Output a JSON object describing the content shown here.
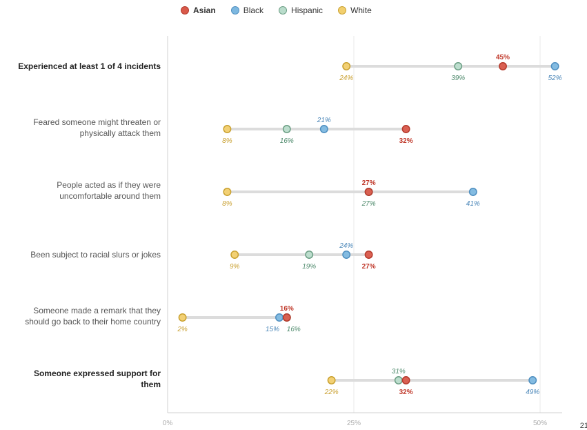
{
  "legend": [
    {
      "name": "Asian",
      "color": "#d9594a",
      "stroke": "#b43a2c",
      "bold": true
    },
    {
      "name": "Black",
      "color": "#7db8e0",
      "stroke": "#4f8fc0",
      "bold": false
    },
    {
      "name": "Hispanic",
      "color": "#b9dccb",
      "stroke": "#6b9e84",
      "bold": false
    },
    {
      "name": "White",
      "color": "#f2cf6e",
      "stroke": "#c9a130",
      "bold": false
    }
  ],
  "label_colors": {
    "Asian": "#c0392b",
    "Black": "#4a86b8",
    "Hispanic": "#4e8a6c",
    "White": "#c9a030"
  },
  "chart_data": {
    "type": "dot-range",
    "x_ticks": [
      {
        "value": 0,
        "label": "0%"
      },
      {
        "value": 25,
        "label": "25%"
      },
      {
        "value": 50,
        "label": "50%"
      }
    ],
    "x_range": [
      0,
      53
    ],
    "rows": [
      {
        "label_lines": [
          "Experienced at least 1 of 4 incidents"
        ],
        "bold": true,
        "values": {
          "Asian": 45,
          "Black": 52,
          "Hispanic": 39,
          "White": 24
        },
        "labels": [
          {
            "series": "Asian",
            "text": "45%",
            "pos": "above"
          },
          {
            "series": "White",
            "text": "24%",
            "pos": "below"
          },
          {
            "series": "Hispanic",
            "text": "39%",
            "pos": "below"
          },
          {
            "series": "Black",
            "text": "52%",
            "pos": "below"
          }
        ]
      },
      {
        "label_lines": [
          "Feared someone might threaten or",
          "physically attack them"
        ],
        "bold": false,
        "values": {
          "Asian": 32,
          "Black": 21,
          "Hispanic": 16,
          "White": 8
        },
        "labels": [
          {
            "series": "Black",
            "text": "21%",
            "pos": "above"
          },
          {
            "series": "White",
            "text": "8%",
            "pos": "below"
          },
          {
            "series": "Hispanic",
            "text": "16%",
            "pos": "below"
          },
          {
            "series": "Asian",
            "text": "32%",
            "pos": "below"
          }
        ]
      },
      {
        "label_lines": [
          "People acted as if they were",
          "uncomfortable around them"
        ],
        "bold": false,
        "values": {
          "Asian": 27,
          "Black": 41,
          "Hispanic": 27,
          "White": 8
        },
        "labels": [
          {
            "series": "Asian",
            "text": "27%",
            "pos": "above"
          },
          {
            "series": "White",
            "text": "8%",
            "pos": "below"
          },
          {
            "series": "Hispanic",
            "text": "27%",
            "pos": "below"
          },
          {
            "series": "Black",
            "text": "41%",
            "pos": "below"
          }
        ]
      },
      {
        "label_lines": [
          "Been subject to racial slurs or jokes"
        ],
        "bold": false,
        "values": {
          "Asian": 27,
          "Black": 24,
          "Hispanic": 19,
          "White": 9
        },
        "labels": [
          {
            "series": "Black",
            "text": "24%",
            "pos": "above"
          },
          {
            "series": "White",
            "text": "9%",
            "pos": "below"
          },
          {
            "series": "Hispanic",
            "text": "19%",
            "pos": "below"
          },
          {
            "series": "Asian",
            "text": "27%",
            "pos": "below"
          }
        ]
      },
      {
        "label_lines": [
          "Someone made a remark that they",
          "should go back to their home country"
        ],
        "bold": false,
        "values": {
          "Asian": 16,
          "Black": 15,
          "Hispanic": 16,
          "White": 2
        },
        "labels": [
          {
            "series": "Asian",
            "text": "16%",
            "pos": "above"
          },
          {
            "series": "White",
            "text": "2%",
            "pos": "below"
          },
          {
            "series": "Black",
            "text": "15%",
            "pos": "below-left"
          },
          {
            "series": "Hispanic",
            "text": "16%",
            "pos": "below-right"
          }
        ]
      },
      {
        "label_lines": [
          "Someone expressed support for",
          "them"
        ],
        "bold": true,
        "values": {
          "Asian": 32,
          "Black": 49,
          "Hispanic": 31,
          "White": 22
        },
        "labels": [
          {
            "series": "Hispanic",
            "text": "31%",
            "pos": "above"
          },
          {
            "series": "White",
            "text": "22%",
            "pos": "below"
          },
          {
            "series": "Asian",
            "text": "32%",
            "pos": "below"
          },
          {
            "series": "Black",
            "text": "49%",
            "pos": "below"
          }
        ]
      }
    ]
  },
  "page_number": "21"
}
